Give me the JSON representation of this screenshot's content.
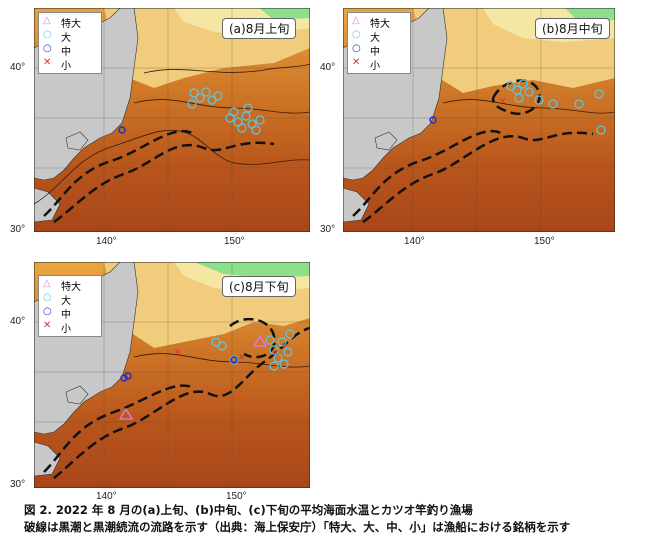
{
  "legend": {
    "items": [
      {
        "label": "特大",
        "symbol": "triangle",
        "color": "#e07ad8"
      },
      {
        "label": "大",
        "symbol": "circle",
        "color": "#5ac8e6"
      },
      {
        "label": "中",
        "symbol": "circle",
        "color": "#1f2ccf"
      },
      {
        "label": "小",
        "symbol": "cross",
        "color": "#e0303a"
      }
    ]
  },
  "panels": [
    {
      "title": "(a)8月上旬"
    },
    {
      "title": "(b)8月中旬"
    },
    {
      "title": "(c)8月下旬"
    }
  ],
  "axis_labels": {
    "lat_top": "40°",
    "lat_bottom": "30°",
    "lon_left": "140°",
    "lon_right": "150°"
  },
  "caption": {
    "line1": "図 2. 2022 年 8 月の(a)上旬、(b)中旬、(c)下旬の平均海面水温とカツオ竿釣り漁場",
    "line2": "破線は黒潮と黒潮続流の流路を示す（出典：海上保安庁）「特大、大、中、小」は漁船における銘柄を示す"
  },
  "colors": {
    "land": "#c8c8c8",
    "warm_sea": "#b4521a",
    "cool_sea": "#f0d488",
    "cold_sea": "#8ce08c"
  }
}
